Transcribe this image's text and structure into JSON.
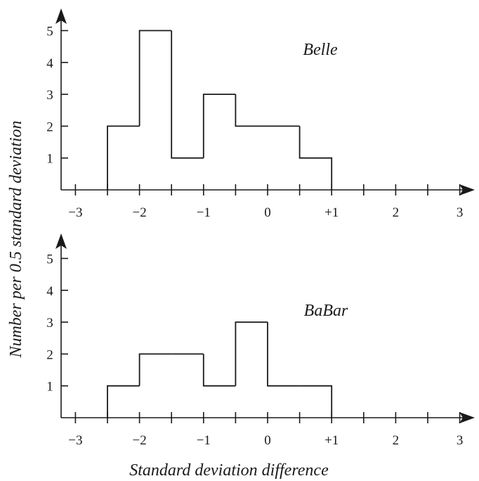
{
  "chart_data": [
    {
      "type": "bar",
      "series_label": "Belle",
      "bin_edges": [
        -2.5,
        -2.0,
        -1.5,
        -1.0,
        -0.5,
        0.0,
        0.5,
        1.0
      ],
      "values": [
        2,
        5,
        1,
        3,
        2,
        2,
        1
      ],
      "xlim": [
        -3,
        3
      ],
      "ylim": [
        0,
        5
      ],
      "x_tick_labels": [
        "−3",
        "−2",
        "−1",
        "0",
        "+1",
        "2",
        "3"
      ],
      "y_tick_labels": [
        "1",
        "2",
        "3",
        "4",
        "5"
      ]
    },
    {
      "type": "bar",
      "series_label": "BaBar",
      "bin_edges": [
        -2.5,
        -2.0,
        -1.5,
        -1.0,
        -0.5,
        0.0,
        0.5,
        1.0
      ],
      "values": [
        1,
        2,
        2,
        1,
        3,
        1,
        1
      ],
      "xlim": [
        -3,
        3
      ],
      "ylim": [
        0,
        5
      ],
      "x_tick_labels": [
        "−3",
        "−2",
        "−1",
        "0",
        "+1",
        "2",
        "3"
      ],
      "y_tick_labels": [
        "1",
        "2",
        "3",
        "4",
        "5"
      ]
    }
  ],
  "xlabel": "Standard deviation difference",
  "ylabel": "Number per 0.5 standard deviation"
}
